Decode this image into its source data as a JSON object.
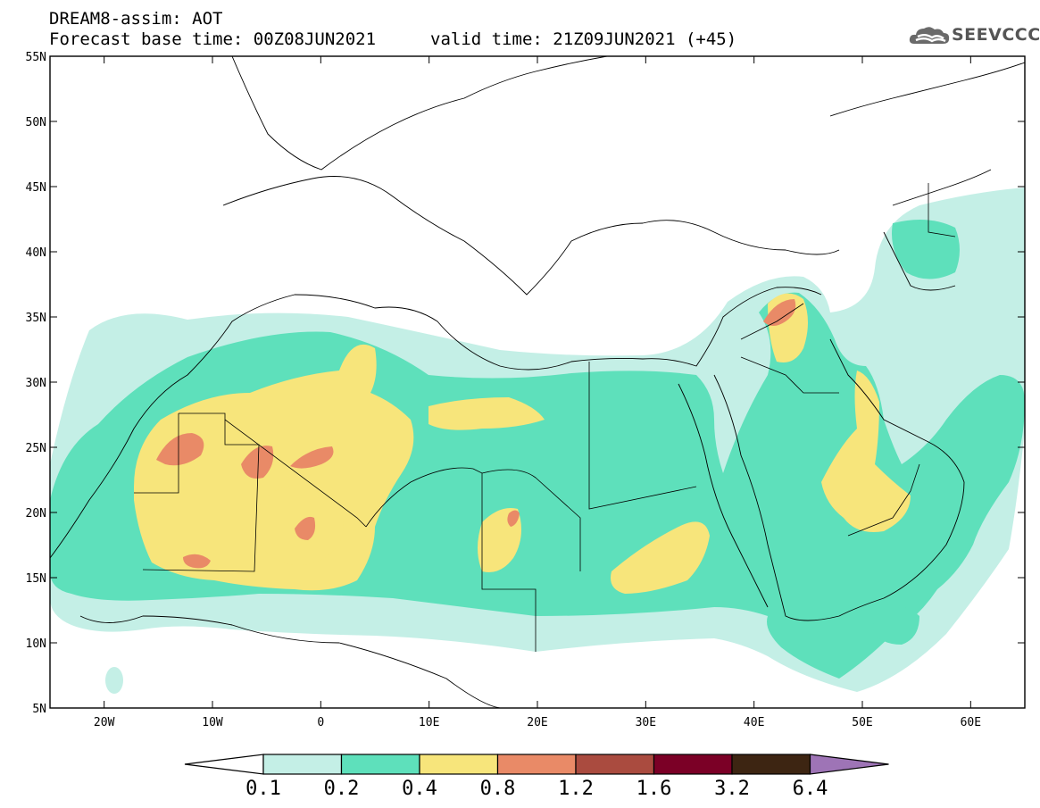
{
  "header": {
    "title_line1": "DREAM8-assim: AOT",
    "title_line2": "Forecast base time: 00Z08JUN2021",
    "valid_time": "valid time: 21Z09JUN2021 (+45)"
  },
  "logo": {
    "text": "SEEVCCC",
    "icon": "cloud-icon"
  },
  "map": {
    "projection": "equirectangular",
    "lon_range": [
      -25,
      65
    ],
    "lat_range": [
      5,
      55
    ],
    "lon_ticks": [
      {
        "value": -20,
        "label": "20W"
      },
      {
        "value": -10,
        "label": "10W"
      },
      {
        "value": 0,
        "label": "0"
      },
      {
        "value": 10,
        "label": "10E"
      },
      {
        "value": 20,
        "label": "20E"
      },
      {
        "value": 30,
        "label": "30E"
      },
      {
        "value": 40,
        "label": "40E"
      },
      {
        "value": 50,
        "label": "50E"
      },
      {
        "value": 60,
        "label": "60E"
      }
    ],
    "lat_ticks": [
      {
        "value": 55,
        "label": "55N"
      },
      {
        "value": 50,
        "label": "50N"
      },
      {
        "value": 45,
        "label": "45N"
      },
      {
        "value": 40,
        "label": "40N"
      },
      {
        "value": 35,
        "label": "35N"
      },
      {
        "value": 30,
        "label": "30N"
      },
      {
        "value": 25,
        "label": "25N"
      },
      {
        "value": 20,
        "label": "20N"
      },
      {
        "value": 15,
        "label": "15N"
      },
      {
        "value": 10,
        "label": "10N"
      },
      {
        "value": 5,
        "label": "5N"
      }
    ]
  },
  "colorbar": {
    "levels": [
      "0.1",
      "0.2",
      "0.4",
      "0.8",
      "1.2",
      "1.6",
      "3.2",
      "6.4"
    ],
    "colors": [
      "#ffffff",
      "#c4efe6",
      "#5ee0bb",
      "#f7e57b",
      "#e98a67",
      "#aa4b3f",
      "#7b0026",
      "#3d2512",
      "#9e74b6"
    ]
  },
  "fields": {
    "colors": {
      "c1": "#c4efe6",
      "c2": "#5ee0bb",
      "c3": "#f7e57b",
      "c4": "#e98a67"
    }
  }
}
